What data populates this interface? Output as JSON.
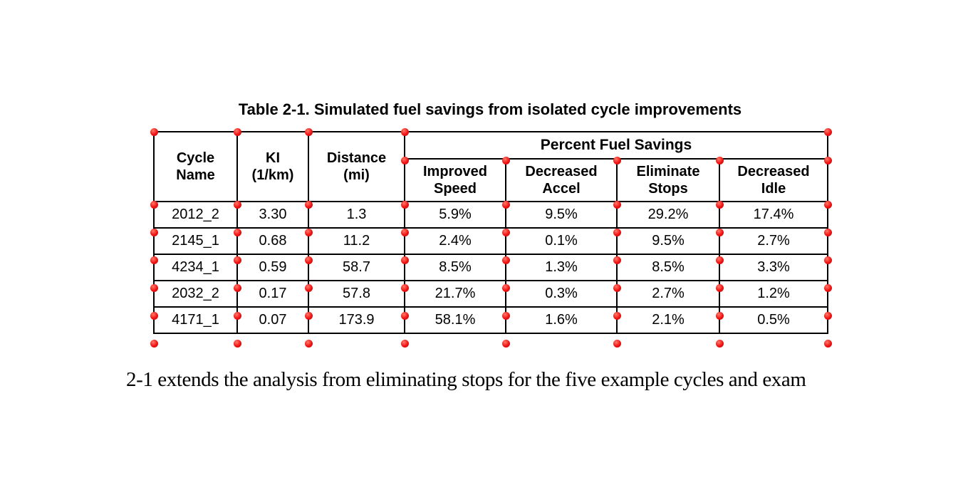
{
  "caption": "Table 2-1. Simulated fuel savings from isolated cycle improvements",
  "table": {
    "headers": {
      "cycle_name": {
        "line1": "Cycle",
        "line2": "Name"
      },
      "ki": {
        "line1": "KI",
        "line2": "(1/km)"
      },
      "distance": {
        "line1": "Distance",
        "line2": "(mi)"
      },
      "group": "Percent Fuel Savings",
      "sub": [
        {
          "line1": "Improved",
          "line2": "Speed"
        },
        {
          "line1": "Decreased",
          "line2": "Accel"
        },
        {
          "line1": "Eliminate",
          "line2": "Stops"
        },
        {
          "line1": "Decreased",
          "line2": "Idle"
        }
      ]
    },
    "rows": [
      [
        "2012_2",
        "3.30",
        "1.3",
        "5.9%",
        "9.5%",
        "29.2%",
        "17.4%"
      ],
      [
        "2145_1",
        "0.68",
        "11.2",
        "2.4%",
        "0.1%",
        "9.5%",
        "2.7%"
      ],
      [
        "4234_1",
        "0.59",
        "58.7",
        "8.5%",
        "1.3%",
        "8.5%",
        "3.3%"
      ],
      [
        "2032_2",
        "0.17",
        "57.8",
        "21.7%",
        "0.3%",
        "2.7%",
        "1.2%"
      ],
      [
        "4171_1",
        "0.07",
        "173.9",
        "58.1%",
        "1.6%",
        "2.1%",
        "0.5%"
      ]
    ],
    "border_color": "#000000"
  },
  "markers": {
    "color": "#f01212",
    "highlight": "#ff7a6a",
    "shadow": "#c40000"
  },
  "body_text": {
    "fragment": "e",
    "text": "2-1 extends the analysis from eliminating stops for the five example cycles and exam"
  }
}
